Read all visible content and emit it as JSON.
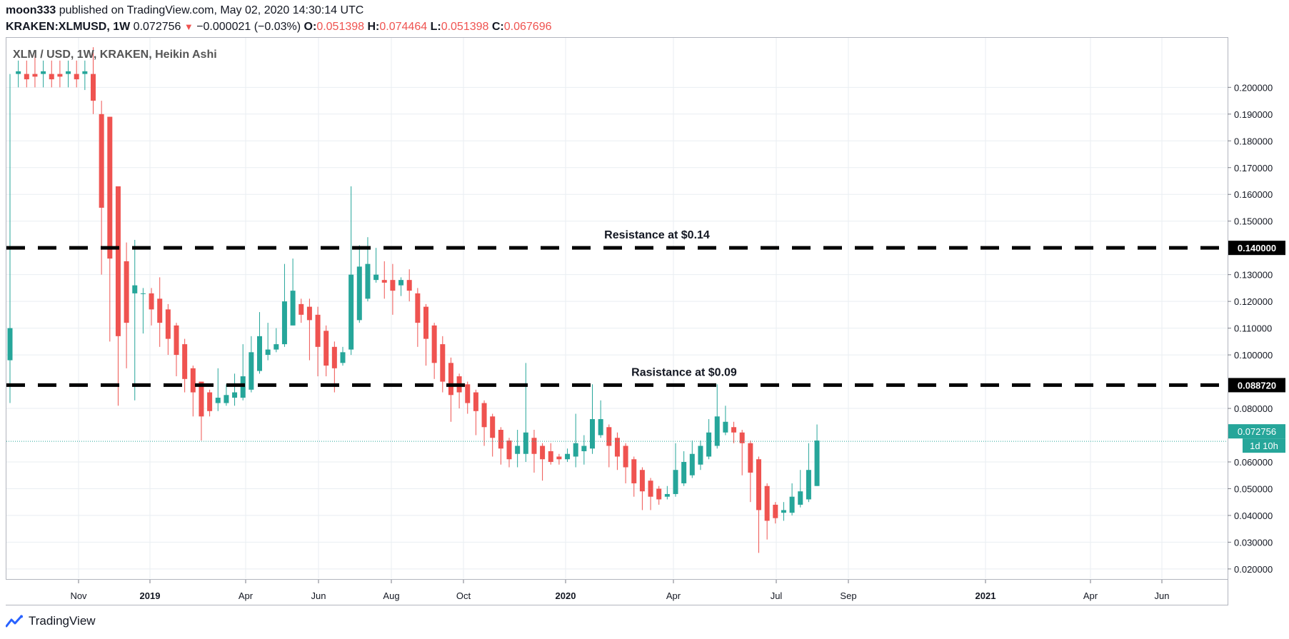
{
  "header": {
    "author": "moon333",
    "published_text": "published on TradingView.com, May 02, 2020 14:30:14 UTC",
    "symbol": "KRAKEN:XLMUSD, 1W",
    "last": "0.072756",
    "change": "−0.000021 (−0.03%)",
    "open_label": "O:",
    "open": "0.051398",
    "high_label": "H:",
    "high": "0.074464",
    "low_label": "L:",
    "low": "0.051398",
    "close_label": "C:",
    "close": "0.067696"
  },
  "footer": {
    "brand": "TradingView",
    "logo_icon": "tradingview-logo-icon"
  },
  "colors": {
    "up": "#26a69a",
    "down": "#ef5350",
    "grid": "#e9eef2",
    "level": "#000000"
  },
  "chart_data": {
    "type": "candlestick",
    "title": "XLM / USD, 1W, KRAKEN, Heikin Ashi",
    "y_axis": {
      "ticks": [
        "0.200000",
        "0.190000",
        "0.180000",
        "0.170000",
        "0.160000",
        "0.150000",
        "0.130000",
        "0.120000",
        "0.110000",
        "0.100000",
        "0.080000",
        "0.060000",
        "0.050000",
        "0.040000",
        "0.030000",
        "0.020000"
      ],
      "range": [
        0.0165,
        0.2185
      ]
    },
    "x_axis": {
      "ticks": [
        "Nov",
        "2019",
        "Apr",
        "Jun",
        "Aug",
        "Oct",
        "2020",
        "Apr",
        "Jul",
        "Sep",
        "2021",
        "Apr",
        "Jun"
      ]
    },
    "candles": [
      {
        "o": 0.098,
        "h": 0.205,
        "l": 0.082,
        "c": 0.11
      },
      {
        "o": 0.205,
        "h": 0.21,
        "l": 0.2,
        "c": 0.206
      },
      {
        "o": 0.205,
        "h": 0.21,
        "l": 0.2,
        "c": 0.203
      },
      {
        "o": 0.205,
        "h": 0.212,
        "l": 0.2,
        "c": 0.204
      },
      {
        "o": 0.205,
        "h": 0.21,
        "l": 0.2,
        "c": 0.206
      },
      {
        "o": 0.205,
        "h": 0.21,
        "l": 0.2,
        "c": 0.203
      },
      {
        "o": 0.205,
        "h": 0.21,
        "l": 0.2,
        "c": 0.204
      },
      {
        "o": 0.205,
        "h": 0.21,
        "l": 0.2,
        "c": 0.206
      },
      {
        "o": 0.205,
        "h": 0.21,
        "l": 0.2,
        "c": 0.203
      },
      {
        "o": 0.205,
        "h": 0.21,
        "l": 0.199,
        "c": 0.206
      },
      {
        "o": 0.205,
        "h": 0.215,
        "l": 0.19,
        "c": 0.195
      },
      {
        "o": 0.19,
        "h": 0.195,
        "l": 0.13,
        "c": 0.155
      },
      {
        "o": 0.189,
        "h": 0.189,
        "l": 0.105,
        "c": 0.136
      },
      {
        "o": 0.163,
        "h": 0.163,
        "l": 0.081,
        "c": 0.107
      },
      {
        "o": 0.135,
        "h": 0.142,
        "l": 0.095,
        "c": 0.112
      },
      {
        "o": 0.123,
        "h": 0.143,
        "l": 0.083,
        "c": 0.126
      },
      {
        "o": 0.123,
        "h": 0.125,
        "l": 0.108,
        "c": 0.123
      },
      {
        "o": 0.123,
        "h": 0.125,
        "l": 0.111,
        "c": 0.117
      },
      {
        "o": 0.121,
        "h": 0.129,
        "l": 0.103,
        "c": 0.112
      },
      {
        "o": 0.117,
        "h": 0.119,
        "l": 0.1,
        "c": 0.106
      },
      {
        "o": 0.111,
        "h": 0.112,
        "l": 0.092,
        "c": 0.1
      },
      {
        "o": 0.104,
        "h": 0.106,
        "l": 0.086,
        "c": 0.091
      },
      {
        "o": 0.095,
        "h": 0.096,
        "l": 0.077,
        "c": 0.086
      },
      {
        "o": 0.09,
        "h": 0.09,
        "l": 0.068,
        "c": 0.077
      },
      {
        "o": 0.086,
        "h": 0.087,
        "l": 0.077,
        "c": 0.079
      },
      {
        "o": 0.082,
        "h": 0.095,
        "l": 0.079,
        "c": 0.084
      },
      {
        "o": 0.082,
        "h": 0.089,
        "l": 0.081,
        "c": 0.085
      },
      {
        "o": 0.084,
        "h": 0.093,
        "l": 0.081,
        "c": 0.086
      },
      {
        "o": 0.084,
        "h": 0.104,
        "l": 0.083,
        "c": 0.092
      },
      {
        "o": 0.087,
        "h": 0.107,
        "l": 0.086,
        "c": 0.101
      },
      {
        "o": 0.094,
        "h": 0.116,
        "l": 0.093,
        "c": 0.107
      },
      {
        "o": 0.1,
        "h": 0.112,
        "l": 0.098,
        "c": 0.102
      },
      {
        "o": 0.102,
        "h": 0.11,
        "l": 0.101,
        "c": 0.104
      },
      {
        "o": 0.104,
        "h": 0.134,
        "l": 0.103,
        "c": 0.12
      },
      {
        "o": 0.111,
        "h": 0.136,
        "l": 0.111,
        "c": 0.124
      },
      {
        "o": 0.119,
        "h": 0.121,
        "l": 0.112,
        "c": 0.115
      },
      {
        "o": 0.118,
        "h": 0.121,
        "l": 0.098,
        "c": 0.113
      },
      {
        "o": 0.115,
        "h": 0.118,
        "l": 0.092,
        "c": 0.103
      },
      {
        "o": 0.109,
        "h": 0.111,
        "l": 0.092,
        "c": 0.096
      },
      {
        "o": 0.103,
        "h": 0.105,
        "l": 0.086,
        "c": 0.095
      },
      {
        "o": 0.097,
        "h": 0.103,
        "l": 0.096,
        "c": 0.101
      },
      {
        "o": 0.102,
        "h": 0.163,
        "l": 0.1,
        "c": 0.13
      },
      {
        "o": 0.113,
        "h": 0.141,
        "l": 0.112,
        "c": 0.133
      },
      {
        "o": 0.121,
        "h": 0.144,
        "l": 0.12,
        "c": 0.134
      },
      {
        "o": 0.128,
        "h": 0.14,
        "l": 0.127,
        "c": 0.13
      },
      {
        "o": 0.128,
        "h": 0.135,
        "l": 0.121,
        "c": 0.127
      },
      {
        "o": 0.128,
        "h": 0.134,
        "l": 0.115,
        "c": 0.124
      },
      {
        "o": 0.126,
        "h": 0.129,
        "l": 0.122,
        "c": 0.128
      },
      {
        "o": 0.128,
        "h": 0.132,
        "l": 0.12,
        "c": 0.124
      },
      {
        "o": 0.123,
        "h": 0.125,
        "l": 0.103,
        "c": 0.112
      },
      {
        "o": 0.118,
        "h": 0.119,
        "l": 0.096,
        "c": 0.106
      },
      {
        "o": 0.111,
        "h": 0.112,
        "l": 0.091,
        "c": 0.097
      },
      {
        "o": 0.104,
        "h": 0.107,
        "l": 0.086,
        "c": 0.09
      },
      {
        "o": 0.097,
        "h": 0.099,
        "l": 0.075,
        "c": 0.085
      },
      {
        "o": 0.092,
        "h": 0.093,
        "l": 0.08,
        "c": 0.086
      },
      {
        "o": 0.089,
        "h": 0.09,
        "l": 0.078,
        "c": 0.082
      },
      {
        "o": 0.086,
        "h": 0.087,
        "l": 0.07,
        "c": 0.079
      },
      {
        "o": 0.082,
        "h": 0.083,
        "l": 0.066,
        "c": 0.073
      },
      {
        "o": 0.077,
        "h": 0.078,
        "l": 0.062,
        "c": 0.069
      },
      {
        "o": 0.072,
        "h": 0.073,
        "l": 0.059,
        "c": 0.065
      },
      {
        "o": 0.068,
        "h": 0.069,
        "l": 0.058,
        "c": 0.061
      },
      {
        "o": 0.063,
        "h": 0.072,
        "l": 0.058,
        "c": 0.066
      },
      {
        "o": 0.063,
        "h": 0.097,
        "l": 0.06,
        "c": 0.071
      },
      {
        "o": 0.069,
        "h": 0.072,
        "l": 0.056,
        "c": 0.063
      },
      {
        "o": 0.066,
        "h": 0.067,
        "l": 0.053,
        "c": 0.061
      },
      {
        "o": 0.064,
        "h": 0.067,
        "l": 0.059,
        "c": 0.06
      },
      {
        "o": 0.062,
        "h": 0.063,
        "l": 0.059,
        "c": 0.061
      },
      {
        "o": 0.061,
        "h": 0.065,
        "l": 0.06,
        "c": 0.063
      },
      {
        "o": 0.062,
        "h": 0.078,
        "l": 0.058,
        "c": 0.067
      },
      {
        "o": 0.064,
        "h": 0.07,
        "l": 0.059,
        "c": 0.066
      },
      {
        "o": 0.065,
        "h": 0.089,
        "l": 0.063,
        "c": 0.076
      },
      {
        "o": 0.07,
        "h": 0.083,
        "l": 0.069,
        "c": 0.076
      },
      {
        "o": 0.073,
        "h": 0.074,
        "l": 0.058,
        "c": 0.066
      },
      {
        "o": 0.069,
        "h": 0.071,
        "l": 0.057,
        "c": 0.062
      },
      {
        "o": 0.066,
        "h": 0.067,
        "l": 0.052,
        "c": 0.058
      },
      {
        "o": 0.061,
        "h": 0.062,
        "l": 0.047,
        "c": 0.052
      },
      {
        "o": 0.057,
        "h": 0.058,
        "l": 0.042,
        "c": 0.049
      },
      {
        "o": 0.053,
        "h": 0.054,
        "l": 0.042,
        "c": 0.047
      },
      {
        "o": 0.05,
        "h": 0.051,
        "l": 0.044,
        "c": 0.046
      },
      {
        "o": 0.047,
        "h": 0.051,
        "l": 0.046,
        "c": 0.048
      },
      {
        "o": 0.048,
        "h": 0.067,
        "l": 0.047,
        "c": 0.057
      },
      {
        "o": 0.052,
        "h": 0.064,
        "l": 0.051,
        "c": 0.06
      },
      {
        "o": 0.055,
        "h": 0.068,
        "l": 0.054,
        "c": 0.063
      },
      {
        "o": 0.059,
        "h": 0.068,
        "l": 0.057,
        "c": 0.066
      },
      {
        "o": 0.062,
        "h": 0.076,
        "l": 0.061,
        "c": 0.071
      },
      {
        "o": 0.066,
        "h": 0.089,
        "l": 0.065,
        "c": 0.077
      },
      {
        "o": 0.071,
        "h": 0.081,
        "l": 0.07,
        "c": 0.075
      },
      {
        "o": 0.073,
        "h": 0.075,
        "l": 0.067,
        "c": 0.071
      },
      {
        "o": 0.071,
        "h": 0.072,
        "l": 0.055,
        "c": 0.067
      },
      {
        "o": 0.067,
        "h": 0.068,
        "l": 0.045,
        "c": 0.056
      },
      {
        "o": 0.061,
        "h": 0.062,
        "l": 0.026,
        "c": 0.042
      },
      {
        "o": 0.051,
        "h": 0.052,
        "l": 0.031,
        "c": 0.038
      },
      {
        "o": 0.044,
        "h": 0.045,
        "l": 0.037,
        "c": 0.039
      },
      {
        "o": 0.041,
        "h": 0.045,
        "l": 0.038,
        "c": 0.042
      },
      {
        "o": 0.041,
        "h": 0.052,
        "l": 0.04,
        "c": 0.047
      },
      {
        "o": 0.044,
        "h": 0.057,
        "l": 0.043,
        "c": 0.049
      },
      {
        "o": 0.046,
        "h": 0.067,
        "l": 0.045,
        "c": 0.057
      },
      {
        "o": 0.051,
        "h": 0.074,
        "l": 0.051,
        "c": 0.068
      }
    ],
    "levels": [
      {
        "label": "Resistance at $0.14",
        "value": 0.14,
        "axis_label": "0.140000"
      },
      {
        "label": "Rasistance at $0.09",
        "value": 0.0887,
        "axis_label": "0.088720"
      }
    ],
    "last_price": {
      "value": 0.067696,
      "label": "0.072756",
      "countdown": "1d 10h"
    }
  }
}
